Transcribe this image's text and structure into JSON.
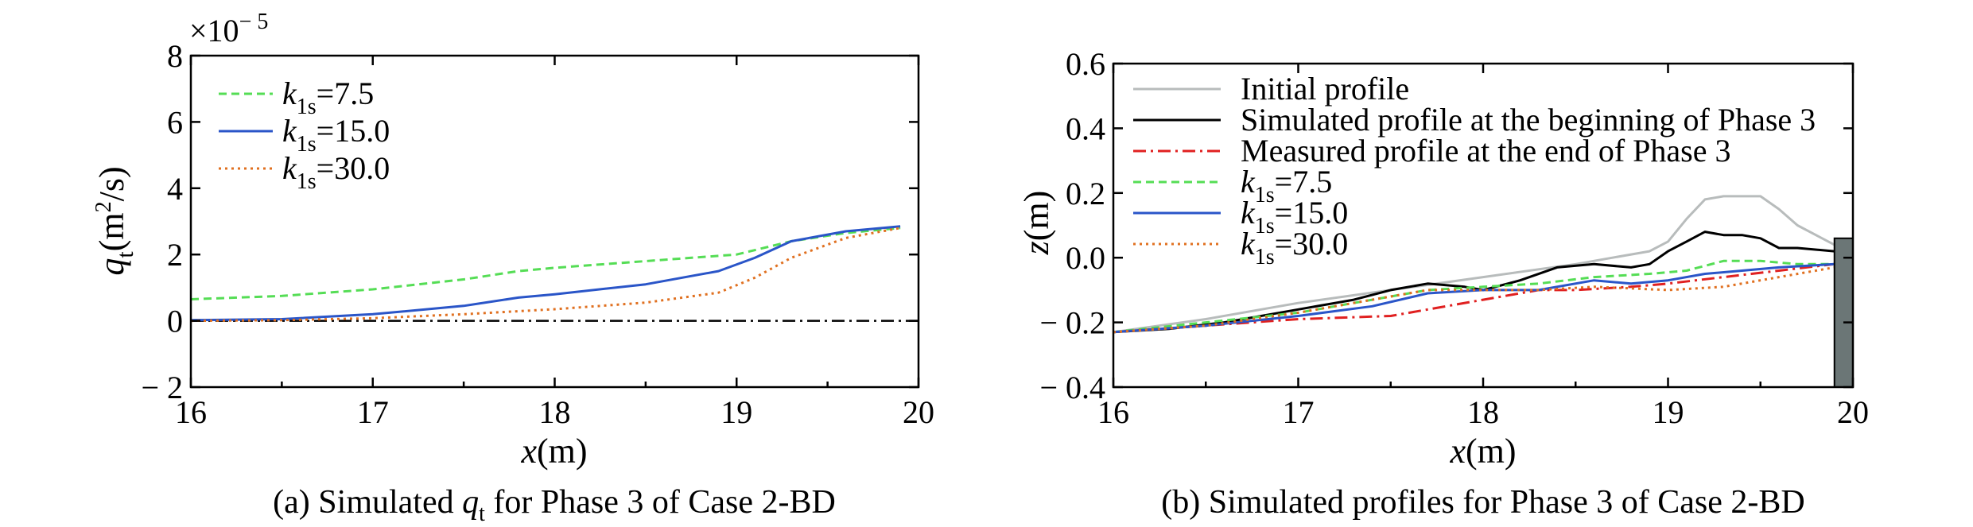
{
  "chart_data": [
    {
      "type": "line",
      "panel": "a",
      "caption_prefix": "(a) Simulated ",
      "caption_symbol": "q",
      "caption_symbol_sub": "t",
      "caption_suffix": " for Phase 3 of Case 2-BD",
      "xlabel": "x",
      "xlabel_unit": "(m)",
      "ylabel_symbol": "q",
      "ylabel_sub": "t",
      "ylabel_unit_pre": "(m",
      "ylabel_unit_sup": "2",
      "ylabel_unit_post": "/s)",
      "multiplier_base": "×10",
      "multiplier_exp": "− 5",
      "xlim": [
        16,
        20
      ],
      "ylim": [
        -2,
        8
      ],
      "xticks": [
        16,
        17,
        18,
        19,
        20
      ],
      "xtick_labels": [
        "16",
        "17",
        "18",
        "19",
        "20"
      ],
      "yticks": [
        -2,
        0,
        2,
        4,
        6,
        8
      ],
      "ytick_labels": [
        "− 2",
        "0",
        "2",
        "4",
        "6",
        "8"
      ],
      "reference_line": {
        "y": 0,
        "color": "#000000",
        "style": "dashdot"
      },
      "series": [
        {
          "name": "k1s=7.5",
          "label_k": "k",
          "label_sub": "1s",
          "label_val": "=7.5",
          "color": "#55dd55",
          "style": "dashed",
          "x": [
            16.0,
            16.5,
            17.0,
            17.5,
            17.8,
            18.0,
            18.5,
            19.0,
            19.3,
            19.6,
            19.9
          ],
          "y": [
            0.65,
            0.75,
            0.95,
            1.25,
            1.5,
            1.6,
            1.8,
            2.0,
            2.4,
            2.65,
            2.8
          ]
        },
        {
          "name": "k1s=15.0",
          "label_k": "k",
          "label_sub": "1s",
          "label_val": "=15.0",
          "color": "#2a55c8",
          "style": "solid",
          "x": [
            16.0,
            16.5,
            17.0,
            17.5,
            17.8,
            18.0,
            18.5,
            18.9,
            19.1,
            19.3,
            19.6,
            19.9
          ],
          "y": [
            0.02,
            0.05,
            0.2,
            0.45,
            0.7,
            0.8,
            1.1,
            1.5,
            1.9,
            2.4,
            2.7,
            2.85
          ]
        },
        {
          "name": "k1s=30.0",
          "label_k": "k",
          "label_sub": "1s",
          "label_val": "=30.0",
          "color": "#e07020",
          "style": "dotted",
          "x": [
            16.0,
            16.5,
            17.0,
            17.5,
            18.0,
            18.5,
            18.9,
            19.1,
            19.3,
            19.6,
            19.9
          ],
          "y": [
            0.0,
            0.02,
            0.08,
            0.2,
            0.35,
            0.55,
            0.85,
            1.3,
            1.9,
            2.5,
            2.8
          ]
        }
      ]
    },
    {
      "type": "line",
      "panel": "b",
      "caption": "(b) Simulated profiles for Phase 3 of Case 2-BD",
      "xlabel": "x",
      "xlabel_unit": "(m)",
      "ylabel": "z",
      "ylabel_unit": "(m)",
      "xlim": [
        16,
        20
      ],
      "ylim": [
        -0.4,
        0.6
      ],
      "xticks": [
        16,
        17,
        18,
        19,
        20
      ],
      "xtick_labels": [
        "16",
        "17",
        "18",
        "19",
        "20"
      ],
      "yticks": [
        -0.4,
        -0.2,
        0.0,
        0.2,
        0.4,
        0.6
      ],
      "ytick_labels": [
        "− 0.4",
        "− 0.2",
        "0.0",
        "0.2",
        "0.4",
        "0.6"
      ],
      "structure": {
        "x_start": 19.9,
        "x_end": 20.0,
        "top": 0.06,
        "color": "#6b7676"
      },
      "series": [
        {
          "name": "Initial profile",
          "label_text": "Initial profile",
          "color": "#b8bcbc",
          "style": "solid",
          "x": [
            16.0,
            16.5,
            17.0,
            17.5,
            18.0,
            18.5,
            18.9,
            19.0,
            19.1,
            19.2,
            19.3,
            19.5,
            19.6,
            19.7,
            19.9
          ],
          "y": [
            -0.23,
            -0.19,
            -0.14,
            -0.1,
            -0.06,
            -0.02,
            0.02,
            0.05,
            0.12,
            0.18,
            0.19,
            0.19,
            0.15,
            0.1,
            0.04
          ]
        },
        {
          "name": "Simulated profile at the beginning of Phase 3",
          "label_text": "Simulated profile at the beginning of Phase 3",
          "color": "#000000",
          "style": "solid",
          "x": [
            16.0,
            16.3,
            16.6,
            17.0,
            17.3,
            17.5,
            17.7,
            17.9,
            18.0,
            18.2,
            18.4,
            18.6,
            18.8,
            18.9,
            19.0,
            19.1,
            19.2,
            19.3,
            19.4,
            19.5,
            19.6,
            19.7,
            19.9
          ],
          "y": [
            -0.23,
            -0.22,
            -0.2,
            -0.16,
            -0.13,
            -0.1,
            -0.08,
            -0.09,
            -0.1,
            -0.07,
            -0.03,
            -0.02,
            -0.03,
            -0.02,
            0.02,
            0.05,
            0.08,
            0.07,
            0.07,
            0.06,
            0.03,
            0.03,
            0.02
          ]
        },
        {
          "name": "Measured profile at the end of Phase 3",
          "label_text": "Measured profile at the end of Phase 3",
          "color": "#e02020",
          "style": "dashdot",
          "x": [
            16.0,
            16.5,
            17.0,
            17.5,
            18.0,
            18.3,
            18.5,
            18.8,
            19.0,
            19.3,
            19.6,
            19.9
          ],
          "y": [
            -0.23,
            -0.21,
            -0.19,
            -0.18,
            -0.13,
            -0.1,
            -0.1,
            -0.09,
            -0.08,
            -0.06,
            -0.04,
            -0.02
          ]
        },
        {
          "name": "k1s=7.5",
          "label_k": "k",
          "label_sub": "1s",
          "label_val": "=7.5",
          "color": "#55dd55",
          "style": "dashed",
          "x": [
            16.0,
            16.5,
            17.0,
            17.4,
            17.7,
            18.0,
            18.3,
            18.6,
            18.9,
            19.1,
            19.3,
            19.5,
            19.7,
            19.9
          ],
          "y": [
            -0.23,
            -0.2,
            -0.17,
            -0.13,
            -0.1,
            -0.09,
            -0.08,
            -0.06,
            -0.05,
            -0.04,
            -0.01,
            -0.01,
            -0.02,
            -0.02
          ]
        },
        {
          "name": "k1s=15.0",
          "label_k": "k",
          "label_sub": "1s",
          "label_val": "=15.0",
          "color": "#2a55c8",
          "style": "solid",
          "x": [
            16.0,
            16.5,
            17.0,
            17.4,
            17.7,
            18.0,
            18.3,
            18.6,
            18.8,
            19.0,
            19.2,
            19.4,
            19.6,
            19.9
          ],
          "y": [
            -0.23,
            -0.21,
            -0.18,
            -0.15,
            -0.11,
            -0.1,
            -0.1,
            -0.07,
            -0.08,
            -0.07,
            -0.05,
            -0.04,
            -0.03,
            -0.02
          ]
        },
        {
          "name": "k1s=30.0",
          "label_k": "k",
          "label_sub": "1s",
          "label_val": "=30.0",
          "color": "#e07020",
          "style": "dotted",
          "x": [
            16.0,
            16.5,
            17.0,
            17.4,
            17.7,
            18.0,
            18.3,
            18.6,
            19.0,
            19.3,
            19.6,
            19.9
          ],
          "y": [
            -0.23,
            -0.21,
            -0.17,
            -0.13,
            -0.1,
            -0.1,
            -0.1,
            -0.09,
            -0.1,
            -0.09,
            -0.06,
            -0.03
          ]
        }
      ]
    }
  ]
}
